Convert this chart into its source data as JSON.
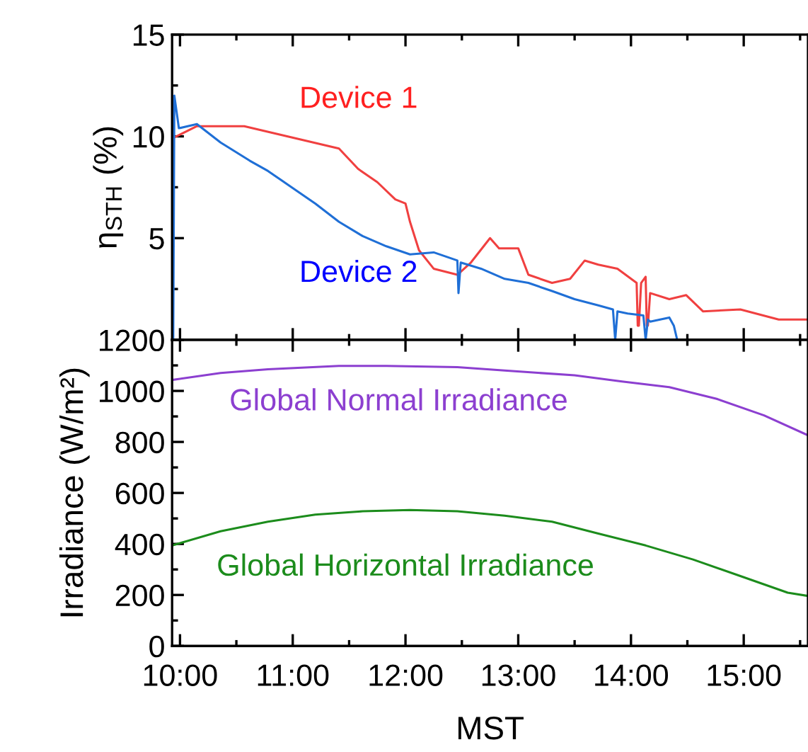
{
  "chart_data": [
    {
      "type": "line",
      "ylabel": "η$_{STH}$ (%)",
      "xlim": [
        9.93,
        15.57
      ],
      "ylim": [
        0,
        15
      ],
      "xticks": [
        {
          "value": 10,
          "label": null
        },
        {
          "value": 11,
          "label": null
        },
        {
          "value": 12,
          "label": null
        },
        {
          "value": 13,
          "label": null
        },
        {
          "value": 14,
          "label": null
        },
        {
          "value": 15,
          "label": null
        }
      ],
      "yticks": [
        {
          "value": 0,
          "label": null
        },
        5,
        10,
        15
      ],
      "tick_labels": "y",
      "grid": false,
      "legend": false,
      "series": [
        {
          "name": "Device 1",
          "color": "#f04040",
          "x": [
            9.95,
            10.15,
            10.57,
            10.99,
            11.41,
            11.58,
            11.75,
            11.91,
            12.0,
            12.04,
            12.12,
            12.25,
            12.46,
            12.58,
            12.75,
            12.83,
            13.0,
            13.09,
            13.3,
            13.46,
            13.59,
            13.71,
            13.88,
            14.05,
            14.06,
            14.07,
            14.09,
            14.13,
            14.14,
            14.15,
            14.17,
            14.34,
            14.49,
            14.64,
            14.97,
            15.31,
            15.57
          ],
          "values": [
            9.95,
            10.5,
            10.5,
            9.95,
            9.4,
            8.4,
            7.75,
            6.9,
            6.7,
            5.8,
            4.4,
            3.5,
            3.2,
            3.8,
            5.0,
            4.5,
            4.5,
            3.2,
            2.8,
            3.0,
            3.9,
            3.7,
            3.5,
            2.8,
            0.7,
            0.7,
            2.8,
            3.1,
            0.7,
            0.7,
            2.3,
            2.0,
            2.2,
            1.4,
            1.5,
            1.0,
            1.0
          ]
        },
        {
          "name": "Device 2",
          "color": "#1f6fd6",
          "x": [
            9.94,
            9.95,
            9.99,
            10.15,
            10.36,
            10.62,
            10.78,
            10.99,
            11.2,
            11.41,
            11.62,
            11.83,
            12.04,
            12.25,
            12.46,
            12.47,
            12.49,
            12.67,
            12.88,
            13.09,
            13.3,
            13.5,
            13.71,
            13.84,
            13.86,
            13.88,
            13.97,
            14.11,
            14.13,
            14.15,
            14.17,
            14.34,
            14.38,
            14.41
          ],
          "values": [
            0,
            12.0,
            10.4,
            10.6,
            9.7,
            8.8,
            8.3,
            7.5,
            6.7,
            5.8,
            5.1,
            4.6,
            4.2,
            4.3,
            3.9,
            2.3,
            3.8,
            3.5,
            3.0,
            2.8,
            2.4,
            2.0,
            1.7,
            1.5,
            0,
            1.4,
            1.3,
            1.2,
            0,
            1.0,
            0.9,
            1.1,
            0.7,
            0
          ]
        }
      ]
    },
    {
      "type": "line",
      "xlabel": "MST",
      "ylabel": "Irradiance (W/m²)",
      "xlim": [
        9.93,
        15.57
      ],
      "ylim": [
        0,
        1200
      ],
      "xticks": [
        {
          "value": 10,
          "label": "10:00"
        },
        {
          "value": 11,
          "label": "11:00"
        },
        {
          "value": 12,
          "label": "12:00"
        },
        {
          "value": 13,
          "label": "13:00"
        },
        {
          "value": 14,
          "label": "14:00"
        },
        {
          "value": 15,
          "label": "15:00"
        }
      ],
      "yticks": [
        0,
        200,
        400,
        600,
        800,
        1000,
        1200
      ],
      "grid": false,
      "legend": false,
      "series": [
        {
          "name": "Global Normal Irradiance",
          "color": "#8c3fd0",
          "x": [
            9.93,
            10.36,
            10.78,
            11.41,
            11.83,
            12.46,
            12.88,
            13.5,
            13.92,
            14.34,
            14.76,
            15.18,
            15.57
          ],
          "values": [
            1043,
            1070,
            1085,
            1098,
            1098,
            1093,
            1080,
            1061,
            1037,
            1015,
            969,
            904,
            826
          ]
        },
        {
          "name": "Global Horizontal Irradiance",
          "color": "#1c8c1c",
          "x": [
            9.93,
            10.36,
            10.78,
            11.2,
            11.62,
            12.04,
            12.46,
            12.88,
            13.3,
            13.71,
            14.13,
            14.55,
            14.97,
            15.39,
            15.57
          ],
          "values": [
            394,
            450,
            487,
            515,
            528,
            533,
            528,
            511,
            487,
            441,
            394,
            339,
            274,
            209,
            196
          ]
        }
      ]
    }
  ]
}
